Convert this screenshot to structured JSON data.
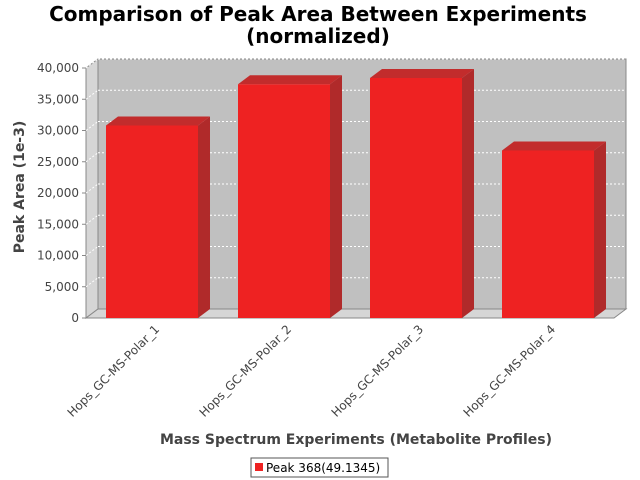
{
  "chart_data": {
    "type": "bar",
    "title_line1": "Comparison of Peak Area Between Experiments",
    "title_line2": "(normalized)",
    "xlabel": "Mass Spectrum Experiments (Metabolite Profiles)",
    "ylabel": "Peak Area (1e-3)",
    "categories": [
      "Hops_GC-MS-Polar_1",
      "Hops_GC-MS-Polar_2",
      "Hops_GC-MS-Polar_3",
      "Hops_GC-MS-Polar_4"
    ],
    "series": [
      {
        "name": "Peak 368(49.1345)",
        "values": [
          30800,
          37400,
          38400,
          26800
        ],
        "color": "#ee2222"
      }
    ],
    "ylim": [
      0,
      40000
    ],
    "yticks": [
      0,
      5000,
      10000,
      15000,
      20000,
      25000,
      30000,
      35000,
      40000
    ],
    "ytick_labels": [
      "0",
      "5,000",
      "10,000",
      "15,000",
      "20,000",
      "25,000",
      "30,000",
      "35,000",
      "40,000"
    ],
    "grid": true,
    "legend_position": "bottom",
    "plot_background": "#c0c0c0"
  }
}
